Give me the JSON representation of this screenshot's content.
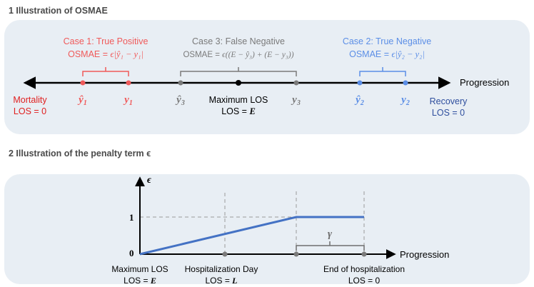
{
  "section1": {
    "title": "1 Illustration of OSMAE",
    "axis_label": "Progression",
    "mortality": {
      "label": "Mortality",
      "los": "LOS = 0"
    },
    "recovery": {
      "label": "Recovery",
      "los": "LOS = 0"
    },
    "max_los": {
      "label": "Maximum LOS",
      "los_prefix": "LOS = ",
      "los_var": "E"
    },
    "points": {
      "y1_hat": "ŷ",
      "y1": "y",
      "y1_sub": "1",
      "y3_hat": "ŷ",
      "y3": "y",
      "y3_sub": "3",
      "y2_hat": "ŷ",
      "y2": "y",
      "y2_sub": "2"
    },
    "case1": {
      "title": "Case 1: True Positive",
      "formula_prefix": "OSMAE = ",
      "formula": "ϵ|ŷ₁ − y₁|"
    },
    "case2": {
      "title": "Case 2: True Negative",
      "formula_prefix": "OSMAE = ",
      "formula": "ϵ|ŷ₂ − y₂|"
    },
    "case3": {
      "title": "Case 3: False Negative",
      "formula_prefix": "OSMAE = ",
      "formula": "ϵ((E − ŷ₃) + (E − y₃))"
    }
  },
  "section2": {
    "title": "2 Illustration of the penalty term ϵ",
    "y_axis_label": "ϵ",
    "x_axis_label": "Progression",
    "tick_one": "1",
    "tick_zero": "0",
    "gamma": "γ",
    "label_max": {
      "line1": "Maximum LOS",
      "line2_prefix": "LOS = ",
      "line2_var": "E"
    },
    "label_day": {
      "line1": "Hospitalization Day",
      "line2_prefix": "LOS = ",
      "line2_var": "L"
    },
    "label_end": {
      "line1": "End of hospitalization",
      "line2": "LOS = 0"
    }
  },
  "colors": {
    "red": "#f05a5a",
    "dark_red": "#e02020",
    "blue": "#5b8ee6",
    "dark_blue": "#2f4f9e",
    "gray": "#7a7a7a",
    "line_blue": "#4472c4",
    "panel": "#e8eef4"
  }
}
